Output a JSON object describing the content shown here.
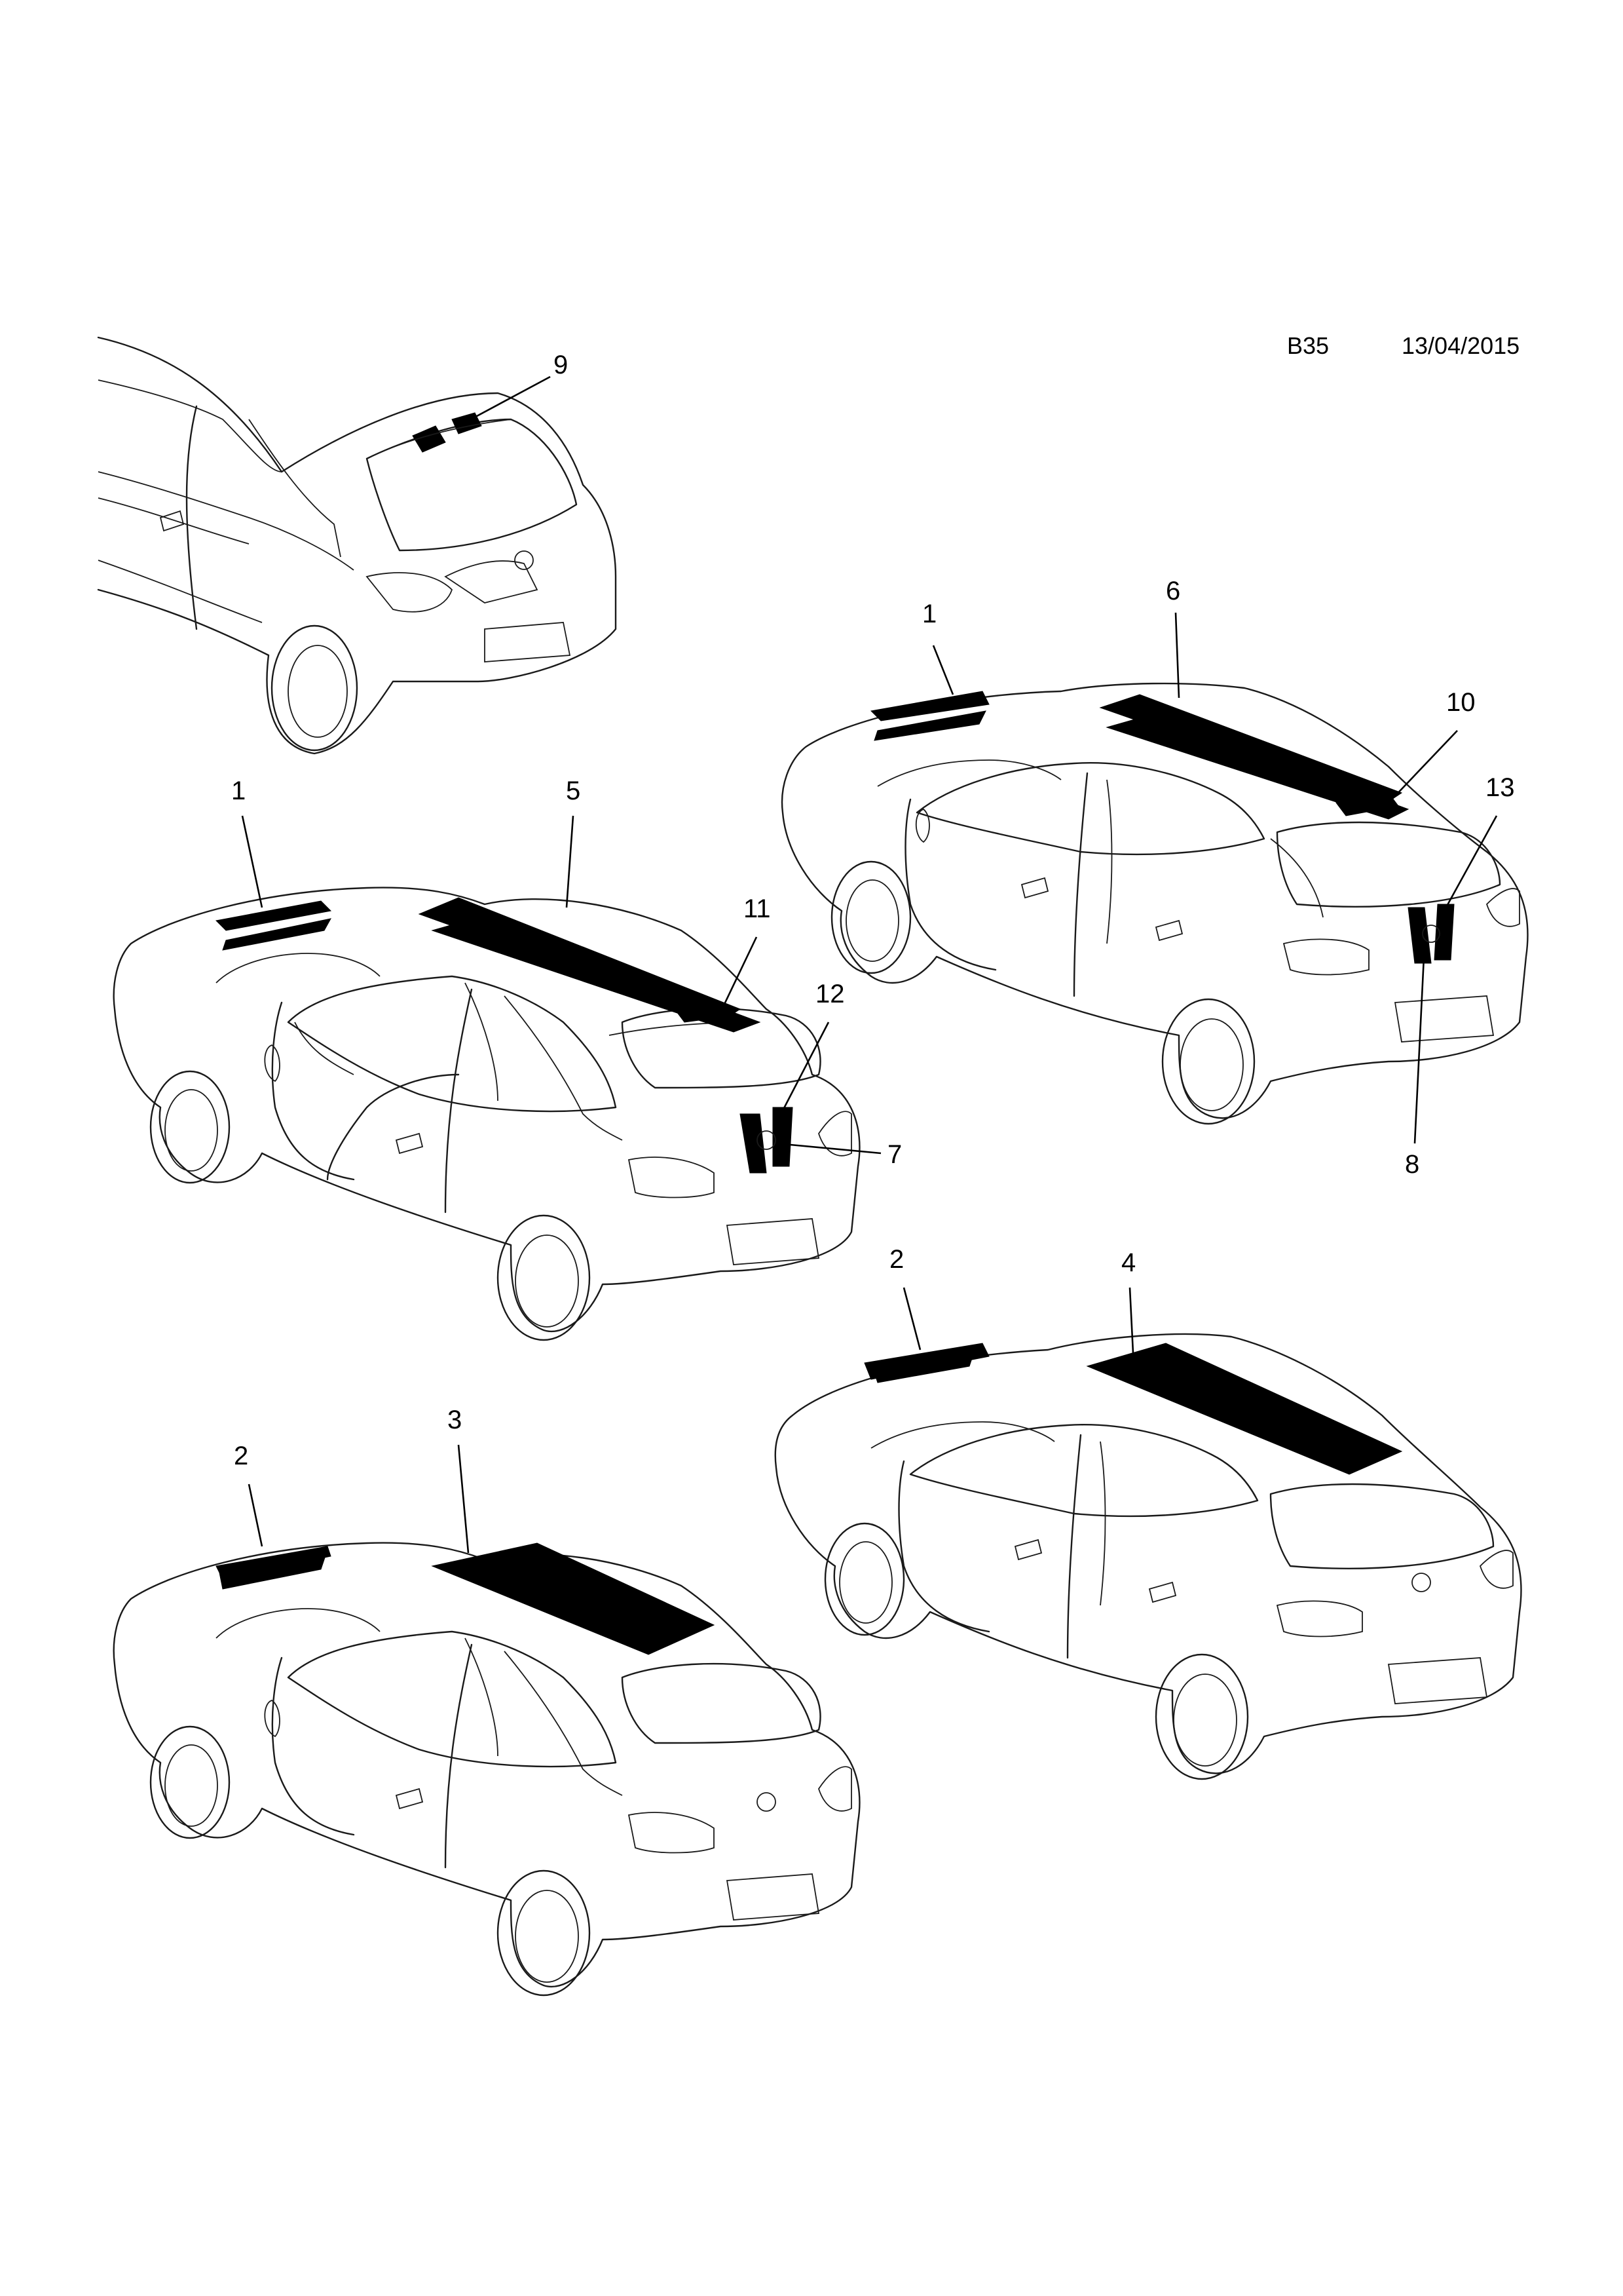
{
  "header": {
    "sheet_code": "B35",
    "date": "13/04/2015"
  },
  "callouts": {
    "c1a": "1",
    "c1b": "1",
    "c2a": "2",
    "c2b": "2",
    "c3": "3",
    "c4": "4",
    "c5": "5",
    "c6": "6",
    "c7": "7",
    "c8": "8",
    "c9": "9",
    "c10": "10",
    "c11": "11",
    "c12": "12",
    "c13": "13"
  },
  "colors": {
    "stripe": "#000000",
    "outline": "#1a1a1a",
    "background": "#ffffff"
  }
}
